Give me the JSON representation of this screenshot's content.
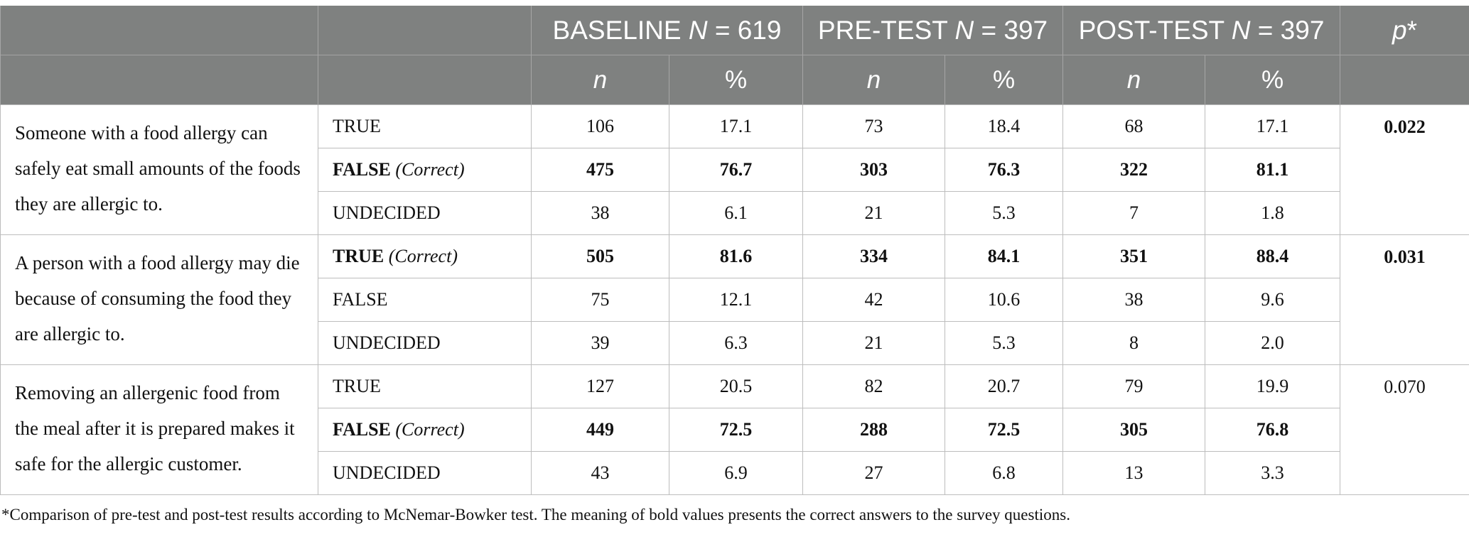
{
  "header": {
    "groups": [
      {
        "label": "BASELINE ",
        "n_label": "N",
        "n_value": " = 619"
      },
      {
        "label": "PRE-TEST ",
        "n_label": "N",
        "n_value": " = 397"
      },
      {
        "label": "POST-TEST ",
        "n_label": "N",
        "n_value": " = 397"
      }
    ],
    "p_label": "p",
    "p_suffix": "*",
    "sub": [
      "n",
      "%",
      "n",
      "%",
      "n",
      "%"
    ]
  },
  "rows": [
    {
      "question": "Someone with a food allergy can safely eat small amounts of the foods they are allergic to.",
      "answer": "TRUE",
      "note": "",
      "bold": false,
      "values": [
        "106",
        "17.1",
        "73",
        "18.4",
        "68",
        "17.1"
      ],
      "p": "0.022",
      "p_bold": true
    },
    {
      "answer": "FALSE",
      "note": " (Correct)",
      "bold": true,
      "values": [
        "475",
        "76.7",
        "303",
        "76.3",
        "322",
        "81.1"
      ]
    },
    {
      "answer": "UNDECIDED",
      "note": "",
      "bold": false,
      "values": [
        "38",
        "6.1",
        "21",
        "5.3",
        "7",
        "1.8"
      ]
    },
    {
      "question": "A person with a food allergy may die because of consuming the food they are allergic to.",
      "answer": "TRUE",
      "note": " (Correct)",
      "bold": true,
      "values": [
        "505",
        "81.6",
        "334",
        "84.1",
        "351",
        "88.4"
      ],
      "p": "0.031",
      "p_bold": true
    },
    {
      "answer": "FALSE",
      "note": "",
      "bold": false,
      "values": [
        "75",
        "12.1",
        "42",
        "10.6",
        "38",
        "9.6"
      ]
    },
    {
      "answer": "UNDECIDED",
      "note": "",
      "bold": false,
      "values": [
        "39",
        "6.3",
        "21",
        "5.3",
        "8",
        "2.0"
      ]
    },
    {
      "question": "Removing an allergenic food from the meal after it is prepared makes it safe for the allergic customer.",
      "answer": "TRUE",
      "note": "",
      "bold": false,
      "values": [
        "127",
        "20.5",
        "82",
        "20.7",
        "79",
        "19.9"
      ],
      "p": "0.070",
      "p_bold": false
    },
    {
      "answer": "FALSE",
      "note": " (Correct)",
      "bold": true,
      "values": [
        "449",
        "72.5",
        "288",
        "72.5",
        "305",
        "76.8"
      ]
    },
    {
      "answer": "UNDECIDED",
      "note": "",
      "bold": false,
      "values": [
        "43",
        "6.9",
        "27",
        "6.8",
        "13",
        "3.3"
      ]
    }
  ],
  "footnote": "*Comparison of pre-test and post-test results according to McNemar-Bowker test. The meaning of bold values presents the correct answers to the survey questions."
}
